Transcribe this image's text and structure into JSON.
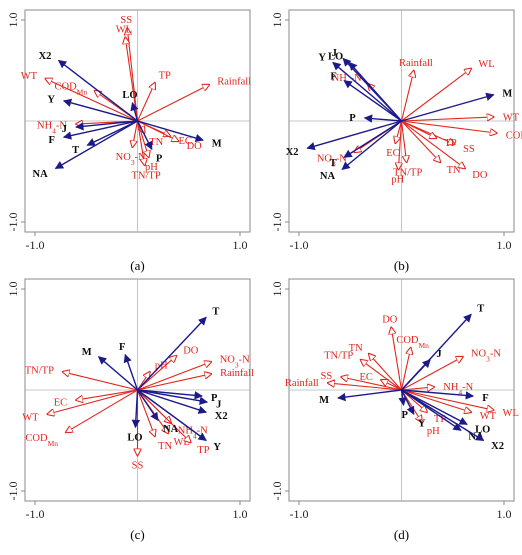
{
  "chart_data": [
    {
      "type": "biplot",
      "panel_label": "(a)",
      "xlim": [
        -1.0,
        1.0
      ],
      "ylim": [
        -1.0,
        1.0
      ],
      "ticks_x": [
        "-1.0",
        "1.0"
      ],
      "ticks_y": [
        "1.0",
        "-1.0"
      ],
      "grid": false,
      "environment": [
        {
          "name": "SS",
          "x": -0.1,
          "y": 0.92
        },
        {
          "name": "WL",
          "x": -0.12,
          "y": 0.83
        },
        {
          "name": "WT",
          "x": -0.9,
          "y": 0.42
        },
        {
          "name": "COD",
          "sub": "Mn",
          "x": -0.42,
          "y": 0.3
        },
        {
          "name": "TP",
          "x": 0.17,
          "y": 0.38
        },
        {
          "name": "Rainfall",
          "x": 0.7,
          "y": 0.36
        },
        {
          "name": "NH",
          "sub": "4",
          "tail": "-N",
          "x": -0.6,
          "y": -0.03
        },
        {
          "name": "TN",
          "x": 0.07,
          "y": -0.12
        },
        {
          "name": "EC",
          "x": 0.32,
          "y": -0.15
        },
        {
          "name": "DO",
          "x": 0.4,
          "y": -0.2
        },
        {
          "name": "NO",
          "sub": "3",
          "tail": "-N",
          "x": -0.05,
          "y": -0.26
        },
        {
          "name": "pH",
          "x": 0.11,
          "y": -0.36
        },
        {
          "name": "TN/TP",
          "x": 0.07,
          "y": -0.44
        }
      ],
      "taxa": [
        {
          "name": "X2",
          "x": -0.77,
          "y": 0.6
        },
        {
          "name": "LO",
          "x": -0.05,
          "y": 0.18
        },
        {
          "name": "Y",
          "x": -0.72,
          "y": 0.2
        },
        {
          "name": "J",
          "x": -0.6,
          "y": -0.06
        },
        {
          "name": "F",
          "x": -0.72,
          "y": -0.16
        },
        {
          "name": "T",
          "x": -0.49,
          "y": -0.24
        },
        {
          "name": "NA",
          "x": -0.8,
          "y": -0.47
        },
        {
          "name": "M",
          "x": 0.64,
          "y": -0.19
        },
        {
          "name": "P",
          "x": 0.14,
          "y": -0.28
        }
      ]
    },
    {
      "type": "biplot",
      "panel_label": "(b)",
      "xlim": [
        -1.0,
        1.0
      ],
      "ylim": [
        -1.0,
        1.0
      ],
      "ticks_x": [
        "-1.0",
        "1.0"
      ],
      "ticks_y": [
        "1.0",
        "-1.0"
      ],
      "grid": false,
      "environment": [
        {
          "name": "NH",
          "sub": "4",
          "tail": "-N",
          "x": -0.33,
          "y": 0.37
        },
        {
          "name": "Rainfall",
          "x": 0.12,
          "y": 0.5
        },
        {
          "name": "WL",
          "x": 0.68,
          "y": 0.52
        },
        {
          "name": "WT",
          "x": 0.9,
          "y": 0.04
        },
        {
          "name": "COD",
          "sub": "Mn",
          "x": 0.93,
          "y": -0.12
        },
        {
          "name": "SS",
          "x": 0.52,
          "y": -0.23
        },
        {
          "name": "TP",
          "x": 0.34,
          "y": -0.17
        },
        {
          "name": "EC",
          "x": -0.06,
          "y": -0.22
        },
        {
          "name": "NO",
          "sub": "3",
          "tail": "-N",
          "x": -0.46,
          "y": -0.31
        },
        {
          "name": "TN/TP",
          "x": 0.05,
          "y": -0.41
        },
        {
          "name": "pH",
          "x": -0.03,
          "y": -0.48
        },
        {
          "name": "TN",
          "x": 0.38,
          "y": -0.41
        },
        {
          "name": "DO",
          "x": 0.62,
          "y": -0.47
        }
      ],
      "taxa": [
        {
          "name": "Y",
          "x": -0.67,
          "y": 0.58
        },
        {
          "name": "J",
          "x": -0.57,
          "y": 0.62
        },
        {
          "name": "LO",
          "x": -0.51,
          "y": 0.58
        },
        {
          "name": "F",
          "x": -0.56,
          "y": 0.4
        },
        {
          "name": "M",
          "x": 0.9,
          "y": 0.26
        },
        {
          "name": "P",
          "x": -0.36,
          "y": 0.03
        },
        {
          "name": "X2",
          "x": -0.92,
          "y": -0.27
        },
        {
          "name": "T",
          "x": -0.56,
          "y": -0.36
        },
        {
          "name": "NA",
          "x": -0.58,
          "y": -0.48
        }
      ]
    },
    {
      "type": "biplot",
      "panel_label": "(c)",
      "xlim": [
        -1.0,
        1.0
      ],
      "ylim": [
        -1.0,
        1.0
      ],
      "ticks_x": [
        "-1.0",
        "1.0"
      ],
      "ticks_y": [
        "1.0",
        "-1.0"
      ],
      "grid": false,
      "environment": [
        {
          "name": "DO",
          "x": 0.38,
          "y": 0.34
        },
        {
          "name": "NO",
          "sub": "3",
          "tail": "-N",
          "x": 0.72,
          "y": 0.28
        },
        {
          "name": "pH",
          "x": 0.12,
          "y": 0.18
        },
        {
          "name": "Rainfall",
          "x": 0.72,
          "y": 0.16
        },
        {
          "name": "TN/TP",
          "x": -0.73,
          "y": 0.18
        },
        {
          "name": "EC",
          "x": -0.6,
          "y": -0.1
        },
        {
          "name": "WT",
          "x": -0.88,
          "y": -0.24
        },
        {
          "name": "COD",
          "sub": "Mn",
          "x": -0.7,
          "y": -0.42
        },
        {
          "name": "NH",
          "sub": "4",
          "tail": "-N",
          "x": 0.33,
          "y": -0.33
        },
        {
          "name": "WL",
          "x": 0.3,
          "y": -0.43
        },
        {
          "name": "TN",
          "x": 0.17,
          "y": -0.46
        },
        {
          "name": "TP",
          "x": 0.52,
          "y": -0.52
        },
        {
          "name": "SS",
          "x": 0.0,
          "y": -0.65
        }
      ],
      "taxa": [
        {
          "name": "T",
          "x": 0.67,
          "y": 0.72
        },
        {
          "name": "M",
          "x": -0.38,
          "y": 0.33
        },
        {
          "name": "F",
          "x": -0.12,
          "y": 0.35
        },
        {
          "name": "P",
          "x": 0.63,
          "y": -0.06
        },
        {
          "name": "J",
          "x": 0.68,
          "y": -0.12
        },
        {
          "name": "X2",
          "x": 0.67,
          "y": -0.22
        },
        {
          "name": "NA",
          "x": 0.2,
          "y": -0.3
        },
        {
          "name": "LO",
          "x": -0.02,
          "y": -0.37
        },
        {
          "name": "Y",
          "x": 0.67,
          "y": -0.5
        }
      ]
    },
    {
      "type": "biplot",
      "panel_label": "(d)",
      "xlim": [
        -1.0,
        1.0
      ],
      "ylim": [
        -1.0,
        1.0
      ],
      "ticks_x": [
        "-1.0",
        "1.0"
      ],
      "ticks_y": [
        "1.0",
        "-1.0"
      ],
      "grid": false,
      "environment": [
        {
          "name": "DO",
          "x": -0.1,
          "y": 0.62
        },
        {
          "name": "COD",
          "sub": "Mn",
          "x": 0.09,
          "y": 0.42
        },
        {
          "name": "TN/TP",
          "x": -0.4,
          "y": 0.3
        },
        {
          "name": "TN",
          "x": -0.32,
          "y": 0.36
        },
        {
          "name": "NO",
          "sub": "3",
          "tail": "-N",
          "x": 0.6,
          "y": 0.33
        },
        {
          "name": "SS",
          "x": -0.59,
          "y": 0.13
        },
        {
          "name": "Rainfall",
          "x": -0.72,
          "y": 0.07
        },
        {
          "name": "EC",
          "x": -0.2,
          "y": 0.1
        },
        {
          "name": "NH",
          "sub": "4",
          "tail": "-N",
          "x": 0.32,
          "y": 0.03
        },
        {
          "name": "WT",
          "x": 0.68,
          "y": -0.22
        },
        {
          "name": "WL",
          "x": 0.9,
          "y": -0.2
        },
        {
          "name": "TP",
          "x": 0.25,
          "y": -0.22
        },
        {
          "name": "pH",
          "x": 0.2,
          "y": -0.32
        }
      ],
      "taxa": [
        {
          "name": "T",
          "x": 0.68,
          "y": 0.75
        },
        {
          "name": "J",
          "x": 0.28,
          "y": 0.3
        },
        {
          "name": "F",
          "x": 0.7,
          "y": -0.06
        },
        {
          "name": "M",
          "x": -0.62,
          "y": -0.08
        },
        {
          "name": "P",
          "x": 0.02,
          "y": -0.15
        },
        {
          "name": "Y",
          "x": 0.12,
          "y": -0.24
        },
        {
          "name": "LO",
          "x": 0.64,
          "y": -0.34
        },
        {
          "name": "NA",
          "x": 0.58,
          "y": -0.4
        },
        {
          "name": "X2",
          "x": 0.8,
          "y": -0.5
        }
      ]
    }
  ],
  "colors": {
    "environment": "#e2261d",
    "taxa": "#1c1a8a",
    "frame": "#8a8a8a",
    "crosshair": "#b5b5b5"
  }
}
